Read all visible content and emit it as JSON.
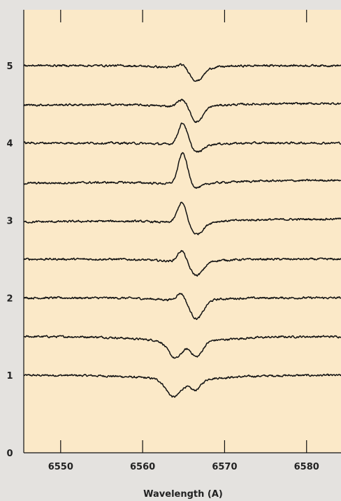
{
  "chart_data": {
    "type": "line",
    "title": "",
    "xlabel": "Wavelength (A)",
    "ylabel": "",
    "xlim": [
      6545.5,
      6584.2
    ],
    "ylim": [
      0,
      5.72
    ],
    "x_ticks": [
      6550,
      6560,
      6570,
      6580
    ],
    "y_ticks": [
      0,
      1,
      2,
      3,
      4,
      5
    ],
    "grid": false,
    "legend": "none",
    "colors": {
      "background": "#e4e2df",
      "plot_bg": "#fbe9c8",
      "line": "#111111"
    },
    "series": [
      {
        "offset": 1.0,
        "left": 1.0,
        "right": 1.0,
        "peaks": [
          {
            "x": 6563.8,
            "a": -0.23,
            "w": 0.9
          },
          {
            "x": 6566.4,
            "a": -0.14,
            "w": 0.7
          },
          {
            "x": 6565.0,
            "a": -0.05,
            "w": 5.0
          }
        ]
      },
      {
        "offset": 1.5,
        "left": 1.5,
        "right": 1.5,
        "peaks": [
          {
            "x": 6564.0,
            "a": -0.22,
            "w": 0.85
          },
          {
            "x": 6566.6,
            "a": -0.2,
            "w": 0.7
          },
          {
            "x": 6565.2,
            "a": -0.06,
            "w": 5.0
          }
        ]
      },
      {
        "offset": 2.0,
        "left": 2.0,
        "right": 2.0,
        "peaks": [
          {
            "x": 6564.7,
            "a": 0.1,
            "w": 0.5
          },
          {
            "x": 6566.6,
            "a": -0.24,
            "w": 0.8
          },
          {
            "x": 6565.5,
            "a": -0.03,
            "w": 3.5
          }
        ]
      },
      {
        "offset": 2.5,
        "left": 2.5,
        "right": 2.5,
        "peaks": [
          {
            "x": 6564.8,
            "a": 0.15,
            "w": 0.5
          },
          {
            "x": 6566.6,
            "a": -0.18,
            "w": 0.8
          },
          {
            "x": 6565.5,
            "a": -0.03,
            "w": 3.5
          }
        ]
      },
      {
        "offset": 3.0,
        "left": 2.98,
        "right": 3.02,
        "peaks": [
          {
            "x": 6564.8,
            "a": 0.27,
            "w": 0.55
          },
          {
            "x": 6566.6,
            "a": -0.15,
            "w": 0.8
          },
          {
            "x": 6565.5,
            "a": -0.03,
            "w": 3.5
          }
        ]
      },
      {
        "offset": 3.5,
        "left": 3.48,
        "right": 3.52,
        "peaks": [
          {
            "x": 6564.9,
            "a": 0.4,
            "w": 0.55
          },
          {
            "x": 6566.6,
            "a": -0.05,
            "w": 0.7
          },
          {
            "x": 6565.5,
            "a": -0.03,
            "w": 3.5
          }
        ]
      },
      {
        "offset": 4.0,
        "left": 4.0,
        "right": 4.0,
        "peaks": [
          {
            "x": 6564.9,
            "a": 0.28,
            "w": 0.55
          },
          {
            "x": 6566.7,
            "a": -0.1,
            "w": 0.7
          },
          {
            "x": 6565.5,
            "a": -0.02,
            "w": 3.5
          }
        ]
      },
      {
        "offset": 4.5,
        "left": 4.49,
        "right": 4.51,
        "peaks": [
          {
            "x": 6564.9,
            "a": 0.1,
            "w": 0.6
          },
          {
            "x": 6566.6,
            "a": -0.2,
            "w": 0.75
          },
          {
            "x": 6565.5,
            "a": -0.03,
            "w": 3.5
          }
        ]
      },
      {
        "offset": 5.0,
        "left": 5.0,
        "right": 5.0,
        "peaks": [
          {
            "x": 6564.9,
            "a": 0.05,
            "w": 0.6
          },
          {
            "x": 6566.6,
            "a": -0.17,
            "w": 0.8
          },
          {
            "x": 6565.5,
            "a": -0.03,
            "w": 3.5
          }
        ]
      }
    ]
  }
}
